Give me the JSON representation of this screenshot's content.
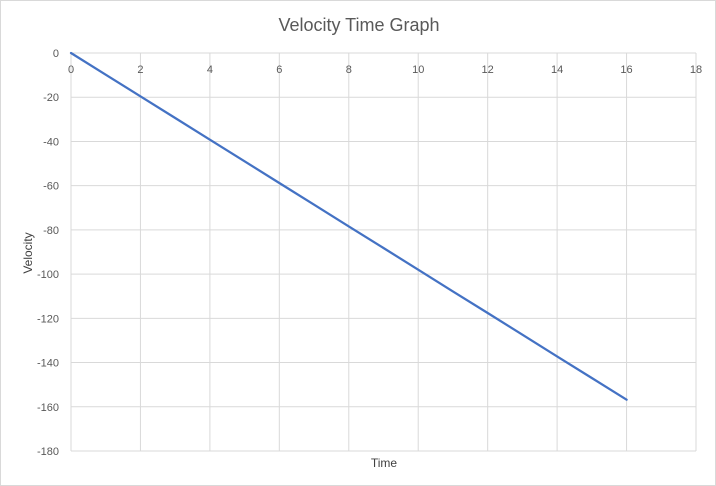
{
  "chart_data": {
    "type": "line",
    "title": "Velocity Time Graph",
    "xlabel": "Time",
    "ylabel": "Velocity",
    "xlim": [
      0,
      18
    ],
    "ylim": [
      -180,
      0
    ],
    "x_ticks": [
      0,
      2,
      4,
      6,
      8,
      10,
      12,
      14,
      16,
      18
    ],
    "y_ticks": [
      0,
      -20,
      -40,
      -60,
      -80,
      -100,
      -120,
      -140,
      -160,
      -180
    ],
    "x_tick_position": "top",
    "grid": true,
    "legend": "none",
    "series": [
      {
        "color": "#4472c4",
        "x": [
          0,
          1,
          2,
          3,
          4,
          5,
          6,
          7,
          8,
          9,
          10,
          11,
          12,
          13,
          14,
          15,
          16
        ],
        "values": [
          0,
          -9.8,
          -19.6,
          -29.4,
          -39.2,
          -49.0,
          -58.8,
          -68.6,
          -78.4,
          -88.2,
          -98.0,
          -107.8,
          -117.6,
          -127.4,
          -137.2,
          -147.0,
          -156.8
        ]
      }
    ]
  }
}
